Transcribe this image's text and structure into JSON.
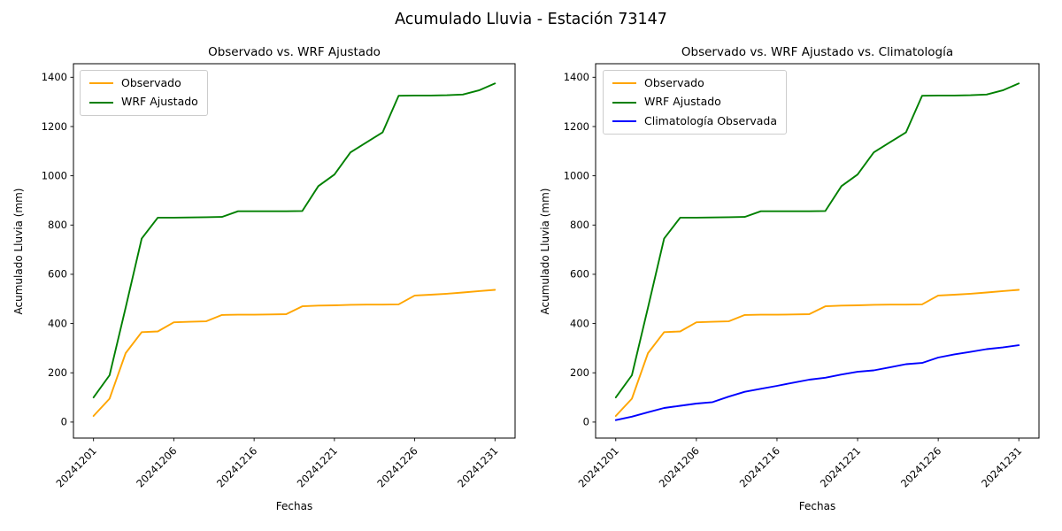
{
  "suptitle": "Acumulado Lluvia - Estación 73147",
  "colors": {
    "observado": "#FFA500",
    "wrf_ajustado": "#008000",
    "climatologia": "#0000FF",
    "axis": "#000000",
    "legend_border": "#cccccc",
    "background": "#ffffff"
  },
  "chart_data": [
    {
      "type": "line",
      "title": "Observado vs. WRF Ajustado",
      "xlabel": "Fechas",
      "ylabel": "Acumulado Lluvia (mm)",
      "grid": false,
      "legend_position": "upper-left",
      "xlim": [
        -1.25,
        26.25
      ],
      "ylim": [
        -65,
        1455
      ],
      "yticks": [
        0,
        200,
        400,
        600,
        800,
        1000,
        1200,
        1400
      ],
      "x_index": [
        0,
        1,
        2,
        3,
        4,
        5,
        6,
        7,
        8,
        9,
        10,
        11,
        12,
        13,
        14,
        15,
        16,
        17,
        18,
        19,
        20,
        21,
        22,
        23,
        24,
        25
      ],
      "xticks": {
        "positions": [
          0,
          5,
          10,
          15,
          20,
          25
        ],
        "labels": [
          "20241201",
          "20241206",
          "20241216",
          "20241221",
          "20241226",
          "20241231"
        ],
        "rotation": 45
      },
      "series": [
        {
          "name": "Observado",
          "color": "#FFA500",
          "values": [
            25,
            95,
            280,
            365,
            368,
            405,
            407,
            409,
            435,
            436,
            436,
            437,
            438,
            470,
            473,
            474,
            476,
            477,
            477,
            478,
            514,
            517,
            521,
            526,
            532,
            537
          ]
        },
        {
          "name": "WRF Ajustado",
          "color": "#008000",
          "values": [
            100,
            190,
            465,
            745,
            830,
            830,
            831,
            832,
            833,
            856,
            856,
            856,
            856,
            857,
            958,
            1005,
            1095,
            1136,
            1176,
            1325,
            1326,
            1326,
            1327,
            1330,
            1347,
            1375
          ]
        }
      ]
    },
    {
      "type": "line",
      "title": "Observado vs. WRF Ajustado vs. Climatología",
      "xlabel": "Fechas",
      "ylabel": "Acumulado Lluvia (mm)",
      "grid": false,
      "legend_position": "upper-left",
      "xlim": [
        -1.25,
        26.25
      ],
      "ylim": [
        -65,
        1455
      ],
      "yticks": [
        0,
        200,
        400,
        600,
        800,
        1000,
        1200,
        1400
      ],
      "x_index": [
        0,
        1,
        2,
        3,
        4,
        5,
        6,
        7,
        8,
        9,
        10,
        11,
        12,
        13,
        14,
        15,
        16,
        17,
        18,
        19,
        20,
        21,
        22,
        23,
        24,
        25
      ],
      "xticks": {
        "positions": [
          0,
          5,
          10,
          15,
          20,
          25
        ],
        "labels": [
          "20241201",
          "20241206",
          "20241216",
          "20241221",
          "20241226",
          "20241231"
        ],
        "rotation": 45
      },
      "series": [
        {
          "name": "Observado",
          "color": "#FFA500",
          "values": [
            25,
            95,
            280,
            365,
            368,
            405,
            407,
            409,
            435,
            436,
            436,
            437,
            438,
            470,
            473,
            474,
            476,
            477,
            477,
            478,
            514,
            517,
            521,
            526,
            532,
            537
          ]
        },
        {
          "name": "WRF Ajustado",
          "color": "#008000",
          "values": [
            100,
            190,
            465,
            745,
            830,
            830,
            831,
            832,
            833,
            856,
            856,
            856,
            856,
            857,
            958,
            1005,
            1095,
            1136,
            1176,
            1325,
            1326,
            1326,
            1327,
            1330,
            1347,
            1375
          ]
        },
        {
          "name": "Climatología Observada",
          "color": "#0000FF",
          "values": [
            8,
            22,
            40,
            57,
            66,
            75,
            81,
            103,
            123,
            135,
            147,
            160,
            172,
            180,
            193,
            204,
            210,
            222,
            235,
            240,
            262,
            275,
            285,
            296,
            303,
            312
          ]
        }
      ]
    }
  ]
}
